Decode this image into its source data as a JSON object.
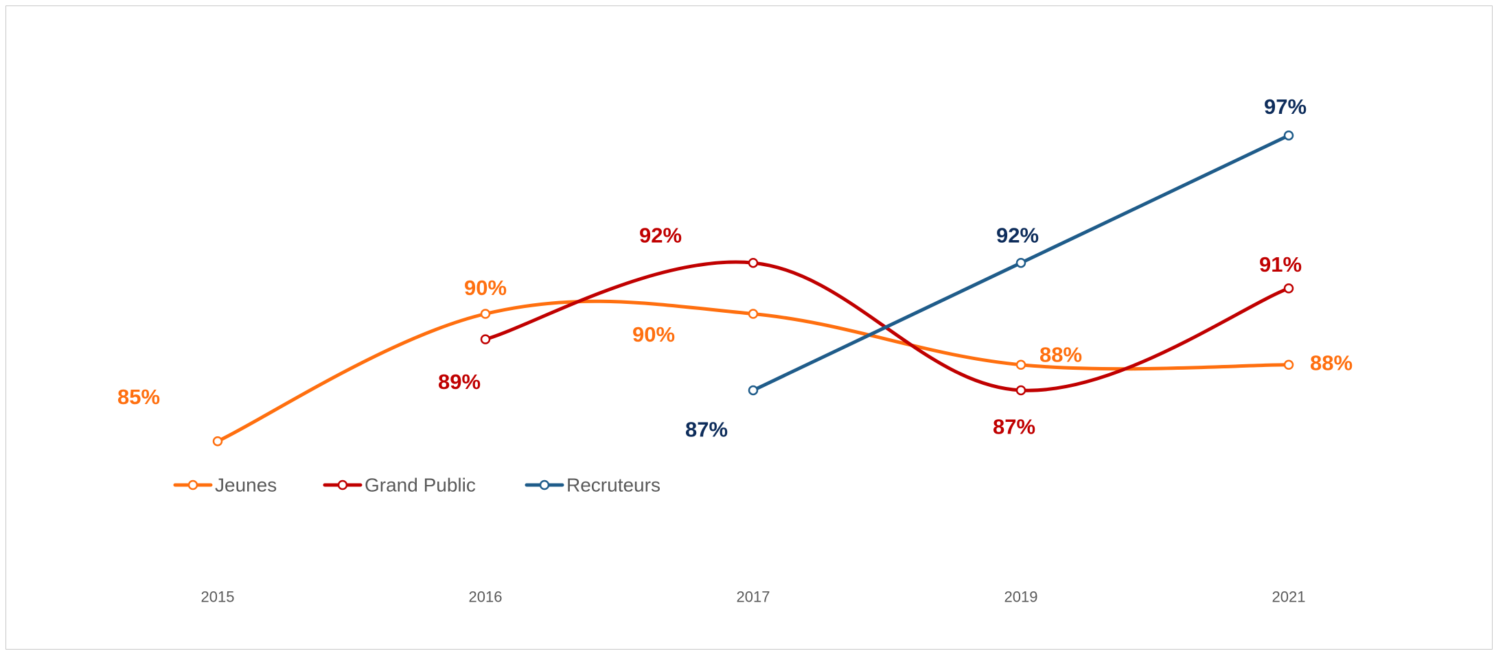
{
  "chart_data": {
    "type": "line",
    "title": "",
    "xlabel": "",
    "ylabel": "",
    "categories": [
      "2015",
      "2016",
      "2017",
      "2019",
      "2021"
    ],
    "ylim": [
      80,
      100
    ],
    "grid": false,
    "legend_position": "bottom-left",
    "series": [
      {
        "name": "Jeunes",
        "color": "#FF6F0F",
        "values": [
          85,
          90,
          90,
          88,
          88
        ],
        "labels": [
          "85%",
          "90%",
          "90%",
          "88%",
          "88%"
        ]
      },
      {
        "name": "Grand Public",
        "color": "#C00000",
        "values": [
          null,
          89,
          92,
          87,
          91
        ],
        "labels": [
          null,
          "89%",
          "92%",
          "87%",
          "91%"
        ]
      },
      {
        "name": "Recruteurs",
        "color": "#1F5C8A",
        "label_color": "#0E2D5B",
        "values": [
          null,
          null,
          87,
          92,
          97
        ],
        "labels": [
          null,
          null,
          "87%",
          "92%",
          "97%"
        ]
      }
    ]
  }
}
